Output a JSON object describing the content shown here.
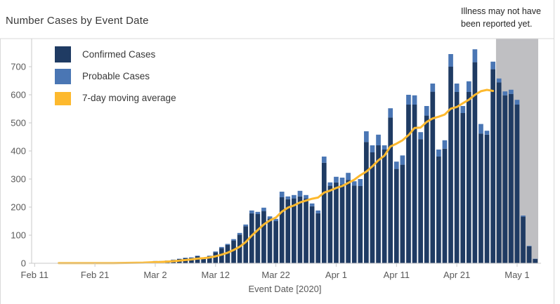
{
  "title": "Number Cases by Event Date",
  "annotation": {
    "line1": "Illness may not have",
    "line2": "been reported yet."
  },
  "legend": [
    {
      "label": "Confirmed Cases",
      "color": "#1f3b63"
    },
    {
      "label": "Probable Cases",
      "color": "#4a76b4"
    },
    {
      "label": "7-day moving average",
      "color": "#fdb92e"
    }
  ],
  "chart_data": {
    "type": "bar",
    "stacked": true,
    "title": "Number Cases by Event Date",
    "xlabel": "Event Date [2020]",
    "ylabel": "",
    "ylim": [
      0,
      800
    ],
    "yticks": [
      0,
      100,
      200,
      300,
      400,
      500,
      600,
      700
    ],
    "xtick_labels": [
      "Feb 11",
      "Feb 21",
      "Mar 2",
      "Mar 12",
      "Mar 22",
      "Apr 1",
      "Apr 11",
      "Apr 21",
      "May 1"
    ],
    "xtick_indices": [
      0,
      10,
      20,
      30,
      40,
      50,
      60,
      70,
      80
    ],
    "grid": false,
    "legend_position": "top-left",
    "dates": [
      "Feb 11",
      "Feb 12",
      "Feb 13",
      "Feb 14",
      "Feb 15",
      "Feb 16",
      "Feb 17",
      "Feb 18",
      "Feb 19",
      "Feb 20",
      "Feb 21",
      "Feb 22",
      "Feb 23",
      "Feb 24",
      "Feb 25",
      "Feb 26",
      "Feb 27",
      "Feb 28",
      "Feb 29",
      "Mar 1",
      "Mar 2",
      "Mar 3",
      "Mar 4",
      "Mar 5",
      "Mar 6",
      "Mar 7",
      "Mar 8",
      "Mar 9",
      "Mar 10",
      "Mar 11",
      "Mar 12",
      "Mar 13",
      "Mar 14",
      "Mar 15",
      "Mar 16",
      "Mar 17",
      "Mar 18",
      "Mar 19",
      "Mar 20",
      "Mar 21",
      "Mar 22",
      "Mar 23",
      "Mar 24",
      "Mar 25",
      "Mar 26",
      "Mar 27",
      "Mar 28",
      "Mar 29",
      "Mar 30",
      "Mar 31",
      "Apr 1",
      "Apr 2",
      "Apr 3",
      "Apr 4",
      "Apr 5",
      "Apr 6",
      "Apr 7",
      "Apr 8",
      "Apr 9",
      "Apr 10",
      "Apr 11",
      "Apr 12",
      "Apr 13",
      "Apr 14",
      "Apr 15",
      "Apr 16",
      "Apr 17",
      "Apr 18",
      "Apr 19",
      "Apr 20",
      "Apr 21",
      "Apr 22",
      "Apr 23",
      "Apr 24",
      "Apr 25",
      "Apr 26",
      "Apr 27",
      "Apr 28",
      "Apr 29",
      "Apr 30",
      "May 1",
      "May 2",
      "May 3",
      "May 4"
    ],
    "series": [
      {
        "name": "Confirmed Cases",
        "color": "#1f3b63",
        "values": [
          1,
          0,
          1,
          0,
          1,
          0,
          1,
          1,
          0,
          1,
          1,
          1,
          0,
          2,
          2,
          2,
          3,
          3,
          4,
          6,
          7,
          7,
          9,
          12,
          15,
          18,
          19,
          25,
          19,
          25,
          39,
          54,
          65,
          81,
          102,
          132,
          178,
          175,
          186,
          159,
          150,
          235,
          228,
          231,
          238,
          231,
          203,
          178,
          358,
          276,
          288,
          280,
          297,
          277,
          275,
          432,
          395,
          420,
          405,
          519,
          336,
          351,
          565,
          565,
          442,
          526,
          611,
          380,
          408,
          700,
          610,
          535,
          610,
          716,
          462,
          458,
          691,
          644,
          598,
          603,
          565,
          166,
          60,
          15
        ]
      },
      {
        "name": "Probable Cases",
        "color": "#4a76b4",
        "values": [
          0,
          0,
          0,
          0,
          0,
          0,
          0,
          0,
          0,
          0,
          0,
          0,
          0,
          0,
          0,
          0,
          0,
          0,
          0,
          0,
          1,
          1,
          1,
          1,
          1,
          2,
          2,
          2,
          2,
          2,
          3,
          4,
          4,
          5,
          6,
          6,
          10,
          8,
          12,
          8,
          8,
          20,
          10,
          12,
          20,
          12,
          10,
          10,
          22,
          12,
          20,
          25,
          25,
          15,
          25,
          38,
          25,
          38,
          15,
          33,
          26,
          33,
          35,
          33,
          25,
          34,
          29,
          25,
          30,
          45,
          30,
          25,
          38,
          46,
          34,
          14,
          27,
          14,
          14,
          15,
          17,
          4,
          2,
          1
        ]
      }
    ],
    "moving_average": {
      "name": "7-day moving average",
      "color": "#fdb92e",
      "window": 7,
      "mode": "trailing",
      "draw_from_index": 4,
      "draw_to_index": 76
    },
    "unreported_region": {
      "start_index": 77,
      "color": "#bfbfc2",
      "note": "Illness may not have been reported yet."
    }
  }
}
